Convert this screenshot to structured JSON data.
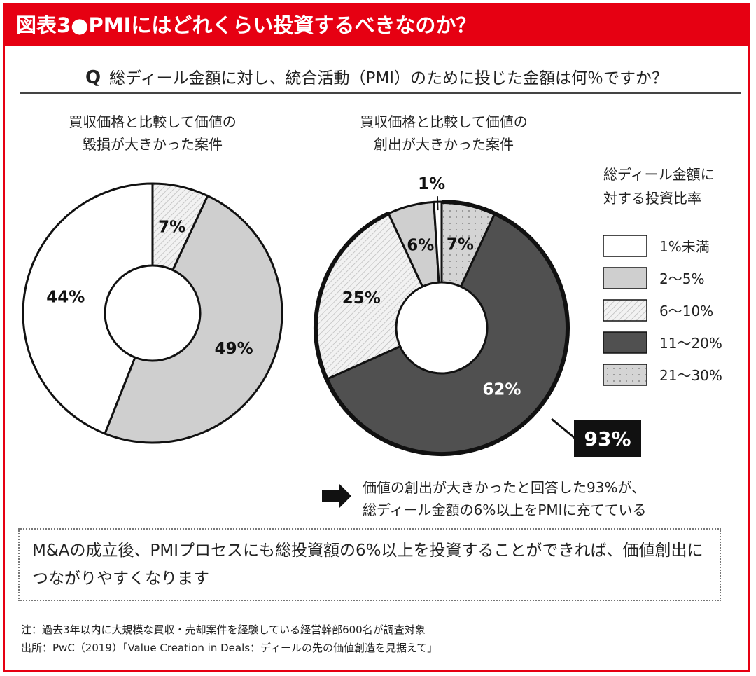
{
  "title": "図表3●PMIにはどれくらい投資するべきなのか？",
  "question_mark": "Q",
  "question": "総ディール金額に対し、統合活動（PMI）のために投じた金額は何％ですか？",
  "colors": {
    "header": "#e60012",
    "white": "#ffffff",
    "gray": "#cfcfcf",
    "hatch": "#e8e8e8",
    "dark": "#505050",
    "dots": "#d6d6d6"
  },
  "chart_data": [
    {
      "type": "pie",
      "subtitle_lines": [
        "買収価格と比較して価値の",
        "毀損が大きかった案件"
      ],
      "categories": [
        "6〜10%",
        "2〜5%",
        "1%未満"
      ],
      "values": [
        7,
        49,
        44
      ],
      "labels": [
        "7%",
        "49%",
        "44%"
      ]
    },
    {
      "type": "pie",
      "subtitle_lines": [
        "買収価格と比較して価値の",
        "創出が大きかった案件"
      ],
      "categories": [
        "21〜30%",
        "11〜20%",
        "6〜10%",
        "2〜5%",
        "1%未満"
      ],
      "values": [
        7,
        62,
        25,
        6,
        1
      ],
      "labels": [
        "7%",
        "62%",
        "25%",
        "6%",
        "1%"
      ],
      "callout": "93%"
    }
  ],
  "legend": {
    "title_lines": [
      "総ディール金額に",
      "対する投資比率"
    ],
    "items": [
      {
        "label": "1%未満",
        "key": "white"
      },
      {
        "label": "2〜5%",
        "key": "gray"
      },
      {
        "label": "6〜10%",
        "key": "hatch"
      },
      {
        "label": "11〜20%",
        "key": "dark"
      },
      {
        "label": "21〜30%",
        "key": "dots"
      }
    ]
  },
  "note_lines": [
    "価値の創出が大きかったと回答した93%が、",
    "総ディール金額の6%以上をPMIに充てている"
  ],
  "conclusion": "M&Aの成立後、PMIプロセスにも総投資額の6%以上を投資することができれば、価値創出につながりやすくなります",
  "footnotes": [
    "注：過去3年以内に大規模な買収・売却案件を経験している経営幹部600名が調査対象",
    "出所：PwC（2019）「Value Creation in Deals：ディールの先の価値創造を見据えて」"
  ]
}
